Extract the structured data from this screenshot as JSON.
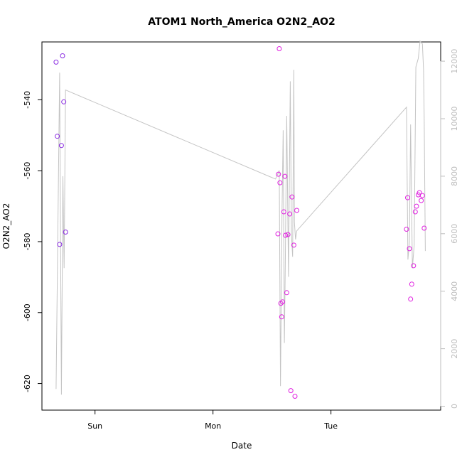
{
  "chart_data": {
    "type": "scatter",
    "title": "ATOM1 North_America O2N2_AO2",
    "xlabel": "Date",
    "ylabel": "O2N2_AO2",
    "x_axis": {
      "unit": "days",
      "range": [
        -0.45,
        2.93
      ],
      "ticks": [
        {
          "value": 0,
          "label": "Sun"
        },
        {
          "value": 1,
          "label": "Mon"
        },
        {
          "value": 2,
          "label": "Tue"
        }
      ]
    },
    "y_axis": {
      "range": [
        -627.5,
        -523.7
      ],
      "ticks": [
        -620,
        -600,
        -580,
        -560,
        -540
      ]
    },
    "y2_axis": {
      "range": [
        -136,
        12670
      ],
      "ticks": [
        0,
        2000,
        4000,
        6000,
        8000,
        10000,
        12000
      ],
      "color": "#bdbdbd"
    },
    "grid": false,
    "legend": "none",
    "point_colors": {
      "early": "#8a2be2",
      "late": "#e020e0"
    },
    "line_color": "#c4c4c4",
    "points": [
      {
        "x": -0.33,
        "y": -529.4,
        "c": "early"
      },
      {
        "x": -0.32,
        "y": -550.3,
        "c": "early"
      },
      {
        "x": -0.3,
        "y": -580.8,
        "c": "early"
      },
      {
        "x": -0.285,
        "y": -552.9,
        "c": "early"
      },
      {
        "x": -0.275,
        "y": -527.6,
        "c": "early"
      },
      {
        "x": -0.265,
        "y": -540.6,
        "c": "early"
      },
      {
        "x": -0.25,
        "y": -577.3,
        "c": "early"
      },
      {
        "x": 1.55,
        "y": -577.8,
        "c": "late"
      },
      {
        "x": 1.555,
        "y": -561.0,
        "c": "late"
      },
      {
        "x": 1.562,
        "y": -525.6,
        "c": "late"
      },
      {
        "x": 1.568,
        "y": -563.4,
        "c": "late"
      },
      {
        "x": 1.575,
        "y": -597.4,
        "c": "late"
      },
      {
        "x": 1.582,
        "y": -601.2,
        "c": "late"
      },
      {
        "x": 1.59,
        "y": -597.0,
        "c": "late"
      },
      {
        "x": 1.6,
        "y": -571.6,
        "c": "late"
      },
      {
        "x": 1.61,
        "y": -561.6,
        "c": "late"
      },
      {
        "x": 1.615,
        "y": -578.2,
        "c": "late"
      },
      {
        "x": 1.625,
        "y": -594.4,
        "c": "late"
      },
      {
        "x": 1.635,
        "y": -578.0,
        "c": "late"
      },
      {
        "x": 1.65,
        "y": -572.2,
        "c": "late"
      },
      {
        "x": 1.66,
        "y": -622.0,
        "c": "late"
      },
      {
        "x": 1.67,
        "y": -567.4,
        "c": "late"
      },
      {
        "x": 1.685,
        "y": -581.0,
        "c": "late"
      },
      {
        "x": 1.695,
        "y": -623.6,
        "c": "late"
      },
      {
        "x": 1.71,
        "y": -571.2,
        "c": "late"
      },
      {
        "x": 2.64,
        "y": -576.5,
        "c": "late"
      },
      {
        "x": 2.65,
        "y": -567.6,
        "c": "late"
      },
      {
        "x": 2.665,
        "y": -582.0,
        "c": "late"
      },
      {
        "x": 2.675,
        "y": -596.2,
        "c": "late"
      },
      {
        "x": 2.685,
        "y": -592.0,
        "c": "late"
      },
      {
        "x": 2.7,
        "y": -586.8,
        "c": "late"
      },
      {
        "x": 2.715,
        "y": -571.6,
        "c": "late"
      },
      {
        "x": 2.725,
        "y": -570.0,
        "c": "late"
      },
      {
        "x": 2.74,
        "y": -566.8,
        "c": "late"
      },
      {
        "x": 2.75,
        "y": -566.2,
        "c": "late"
      },
      {
        "x": 2.765,
        "y": -568.4,
        "c": "late"
      },
      {
        "x": 2.775,
        "y": -567.0,
        "c": "late"
      },
      {
        "x": 2.79,
        "y": -576.2,
        "c": "late"
      }
    ],
    "secondary_series": {
      "axis": "right",
      "x": [
        -0.33,
        -0.3,
        -0.285,
        -0.272,
        -0.262,
        -0.25,
        1.53,
        1.562,
        1.572,
        1.585,
        1.595,
        1.605,
        1.613,
        1.625,
        1.64,
        1.655,
        1.665,
        1.675,
        1.685,
        1.69,
        1.7,
        1.71,
        2.64,
        2.652,
        2.665,
        2.675,
        2.69,
        2.705,
        2.72,
        2.74,
        2.755,
        2.775,
        2.785,
        2.79,
        2.8
      ],
      "y": [
        600,
        11600,
        400,
        8000,
        4800,
        11000,
        7900,
        8200,
        700,
        6800,
        9600,
        2200,
        5000,
        10100,
        4500,
        11300,
        6000,
        5200,
        11700,
        6400,
        5800,
        6100,
        10400,
        5100,
        5700,
        9800,
        4800,
        5600,
        11800,
        12100,
        12700,
        12600,
        11700,
        10000,
        5400
      ]
    }
  }
}
